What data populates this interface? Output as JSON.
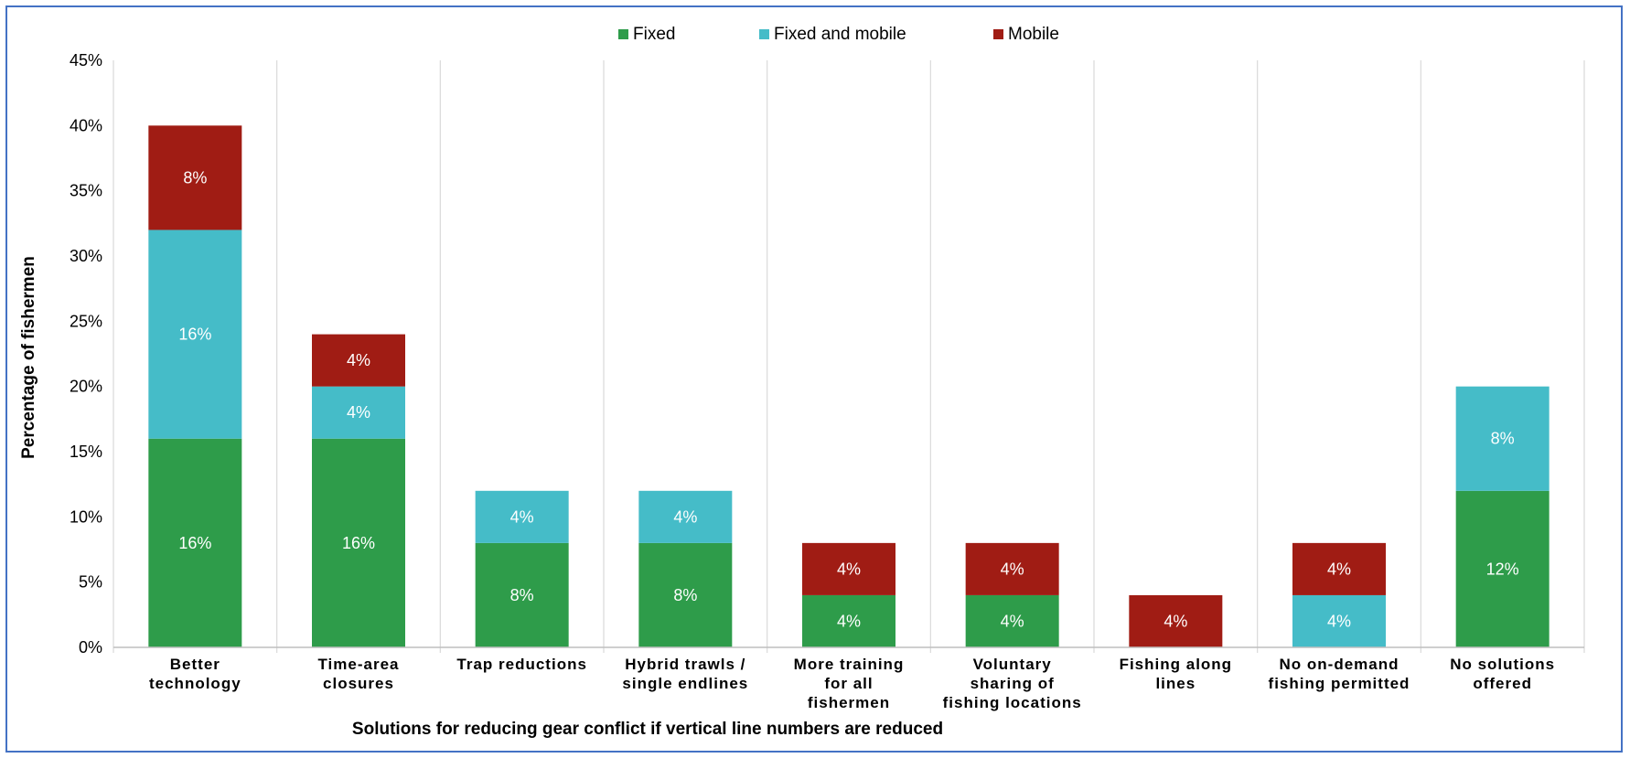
{
  "chart_data": {
    "type": "bar",
    "stacked": true,
    "title": "",
    "xlabel": "Solutions for reducing gear conflict if vertical line numbers are reduced",
    "ylabel": "Percentage of fishermen",
    "ylim": [
      0,
      45
    ],
    "yticks": [
      0,
      5,
      10,
      15,
      20,
      25,
      30,
      35,
      40,
      45
    ],
    "ytick_labels": [
      "0%",
      "5%",
      "10%",
      "15%",
      "20%",
      "25%",
      "30%",
      "35%",
      "40%",
      "45%"
    ],
    "grid": "vertical category separators",
    "legend_position": "top",
    "categories": [
      [
        "Better",
        "technology"
      ],
      [
        "Time-area",
        "closures"
      ],
      [
        "Trap reductions"
      ],
      [
        "Hybrid trawls /",
        "single endlines"
      ],
      [
        "More training",
        "for all",
        "fishermen"
      ],
      [
        "Voluntary",
        "sharing of",
        "fishing locations"
      ],
      [
        "Fishing along",
        "lines"
      ],
      [
        "No on-demand",
        "fishing permitted"
      ],
      [
        "No solutions",
        "offered"
      ]
    ],
    "series": [
      {
        "name": "Fixed",
        "color": "#2e9c4a",
        "values": [
          16,
          16,
          8,
          8,
          4,
          4,
          0,
          0,
          12
        ]
      },
      {
        "name": "Fixed and mobile",
        "color": "#45bcc8",
        "values": [
          16,
          4,
          4,
          4,
          0,
          0,
          0,
          4,
          8
        ]
      },
      {
        "name": "Mobile",
        "color": "#a01c14",
        "values": [
          8,
          4,
          0,
          0,
          4,
          4,
          4,
          4,
          0
        ]
      }
    ],
    "data_label_suffix": "%"
  }
}
